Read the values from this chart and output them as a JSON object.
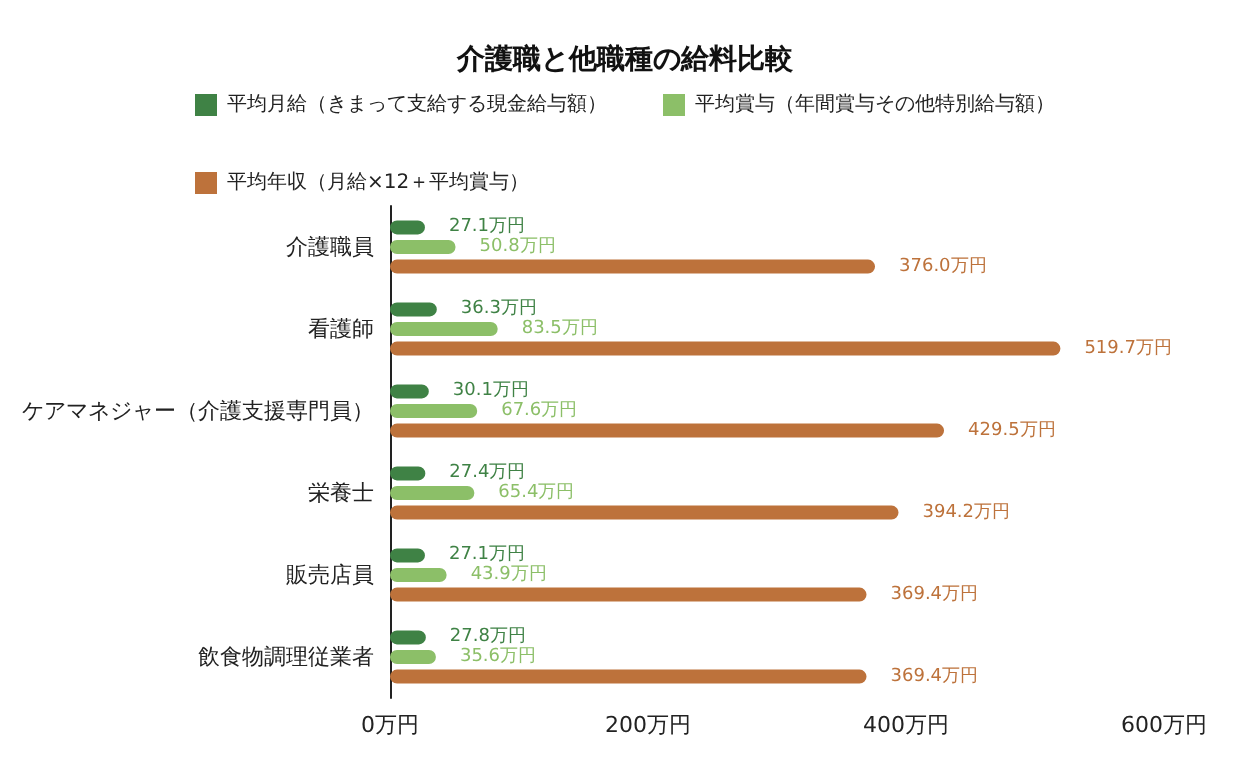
{
  "chart_data": {
    "type": "bar",
    "orientation": "horizontal",
    "title": "介護職と他職種の給料比較",
    "categories": [
      "介護職員",
      "看護師",
      "ケアマネジャー（介護支援専門員）",
      "栄養士",
      "販売店員",
      "飲食物調理従業者"
    ],
    "series": [
      {
        "name": "平均月給（きまって支給する現金給与額）",
        "color": "#3f8245",
        "values": [
          27.1,
          36.3,
          30.1,
          27.4,
          27.1,
          27.8
        ],
        "value_labels": [
          "27.1万円",
          "36.3万円",
          "30.1万円",
          "27.4万円",
          "27.1万円",
          "27.8万円"
        ]
      },
      {
        "name": "平均賞与（年間賞与その他特別給与額）",
        "color": "#8cbf68",
        "values": [
          50.8,
          83.5,
          67.6,
          65.4,
          43.9,
          35.6
        ],
        "value_labels": [
          "50.8万円",
          "83.5万円",
          "67.6万円",
          "65.4万円",
          "43.9万円",
          "35.6万円"
        ]
      },
      {
        "name": "平均年収（月給×12＋平均賞与）",
        "color": "#bd723b",
        "values": [
          376.0,
          519.7,
          429.5,
          394.2,
          369.4,
          369.4
        ],
        "value_labels": [
          "376.0万円",
          "519.7万円",
          "429.5万円",
          "394.2万円",
          "369.4万円",
          "369.4万円"
        ]
      }
    ],
    "xlim": [
      0,
      600
    ],
    "xticks": [
      {
        "value": 0,
        "label": "0万円"
      },
      {
        "value": 200,
        "label": "200万円"
      },
      {
        "value": 400,
        "label": "400万円"
      },
      {
        "value": 600,
        "label": "600万円"
      }
    ],
    "grid": false,
    "legend": "top"
  }
}
